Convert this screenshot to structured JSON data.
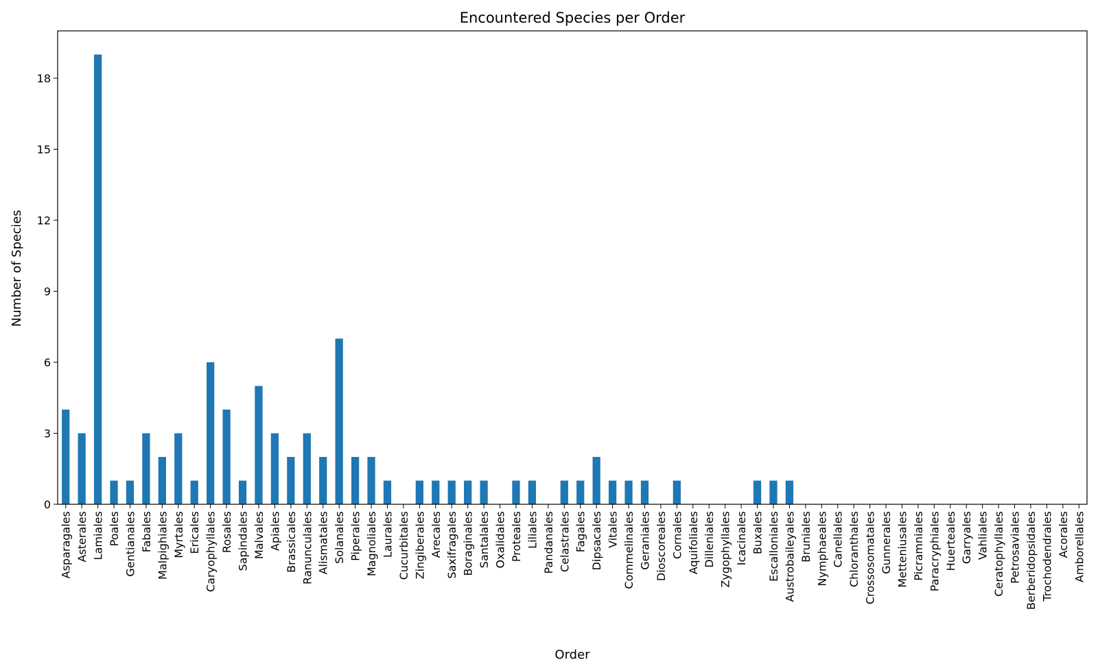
{
  "chart_data": {
    "type": "bar",
    "title": "Encountered Species per Order",
    "xlabel": "Order",
    "ylabel": "Number of Species",
    "ylim": [
      0,
      20
    ],
    "yticks": [
      0,
      3,
      6,
      9,
      12,
      15,
      18
    ],
    "ytick_labels": [
      "0",
      "3",
      "6",
      "9",
      "12",
      "15",
      "18"
    ],
    "grid": false,
    "legend": "none",
    "colors": {
      "bar": "#1f77b4",
      "label_present": "#000000",
      "label_absent": "#a6a6a6"
    },
    "categories": [
      "Asparagales",
      "Asterales",
      "Lamiales",
      "Poales",
      "Gentianales",
      "Fabales",
      "Malpighiales",
      "Myrtales",
      "Ericales",
      "Caryophyllales",
      "Rosales",
      "Sapindales",
      "Malvales",
      "Apiales",
      "Brassicales",
      "Ranunculales",
      "Alismatales",
      "Solanales",
      "Piperales",
      "Magnoliales",
      "Laurales",
      "Cucurbitales",
      "Zingiberales",
      "Arecales",
      "Saxifragales",
      "Boraginales",
      "Santalales",
      "Oxalidales",
      "Proteales",
      "Liliales",
      "Pandanales",
      "Celastrales",
      "Fagales",
      "Dipsacales",
      "Vitales",
      "Commelinales",
      "Geraniales",
      "Dioscoreales",
      "Cornales",
      "Aquifoliales",
      "Dilleniales",
      "Zygophyllales",
      "Icacinales",
      "Buxales",
      "Escalloniales",
      "Austrobaileyales",
      "Bruniales",
      "Nymphaeales",
      "Canellales",
      "Chloranthales",
      "Crossosomatales",
      "Gunnerales",
      "Metteniusales",
      "Picramniales",
      "Paracryphiales",
      "Huerteales",
      "Garryales",
      "Vahliales",
      "Ceratophyllales",
      "Petrosaviales",
      "Berberidopsidales",
      "Trochodendrales",
      "Acorales",
      "Amborellales"
    ],
    "values": [
      4,
      3,
      19,
      1,
      1,
      3,
      2,
      3,
      1,
      6,
      4,
      1,
      5,
      3,
      2,
      3,
      2,
      7,
      2,
      2,
      1,
      0,
      1,
      1,
      1,
      1,
      1,
      0,
      1,
      1,
      0,
      1,
      1,
      2,
      1,
      1,
      1,
      0,
      1,
      0,
      0,
      0,
      0,
      1,
      1,
      1,
      0,
      0,
      0,
      0,
      0,
      0,
      0,
      0,
      0,
      0,
      0,
      0,
      0,
      0,
      0,
      0,
      0,
      0
    ]
  }
}
